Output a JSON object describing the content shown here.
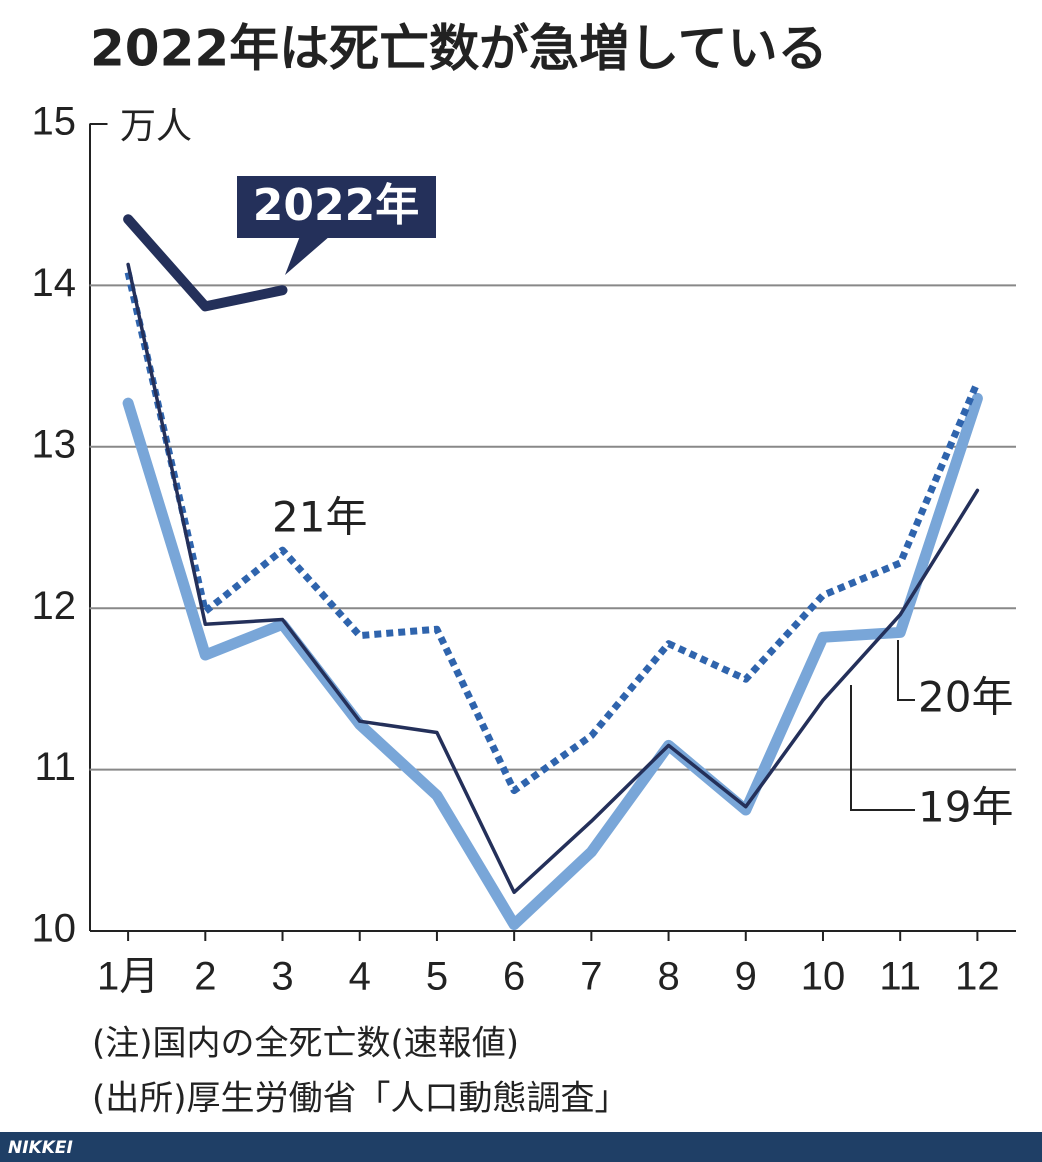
{
  "chart_data": {
    "type": "line",
    "title": "2022年は死亡数が急増している",
    "y_unit": "万人",
    "categories": [
      "1月",
      "2",
      "3",
      "4",
      "5",
      "6",
      "7",
      "8",
      "9",
      "10",
      "11",
      "12"
    ],
    "series": [
      {
        "name": "2022年",
        "color": "#24305a",
        "dashed": false,
        "values": [
          14.41,
          13.87,
          13.97,
          null,
          null,
          null,
          null,
          null,
          null,
          null,
          null,
          null
        ]
      },
      {
        "name": "21年",
        "color": "#2f64ad",
        "dashed": true,
        "values": [
          14.08,
          11.98,
          12.36,
          11.83,
          11.87,
          10.87,
          11.21,
          11.78,
          11.56,
          12.08,
          12.28,
          13.4
        ]
      },
      {
        "name": "20年",
        "color": "#79a6d8",
        "dashed": false,
        "values": [
          13.27,
          11.71,
          11.9,
          11.28,
          10.84,
          10.04,
          10.49,
          11.15,
          10.75,
          11.82,
          11.85,
          13.3
        ]
      },
      {
        "name": "19年",
        "color": "#24305a",
        "dashed": false,
        "values": [
          14.13,
          11.9,
          11.93,
          11.3,
          11.23,
          10.24,
          10.68,
          11.15,
          10.77,
          11.43,
          11.96,
          12.73
        ]
      }
    ],
    "ylim": [
      10,
      15
    ],
    "yticks": [
      10,
      11,
      12,
      13,
      14,
      15
    ],
    "grid": true,
    "note": "(注)国内の全死亡数(速報値)",
    "source": "(出所)厚生労働省「人口動態調査」",
    "brand": "NIKKEI"
  }
}
